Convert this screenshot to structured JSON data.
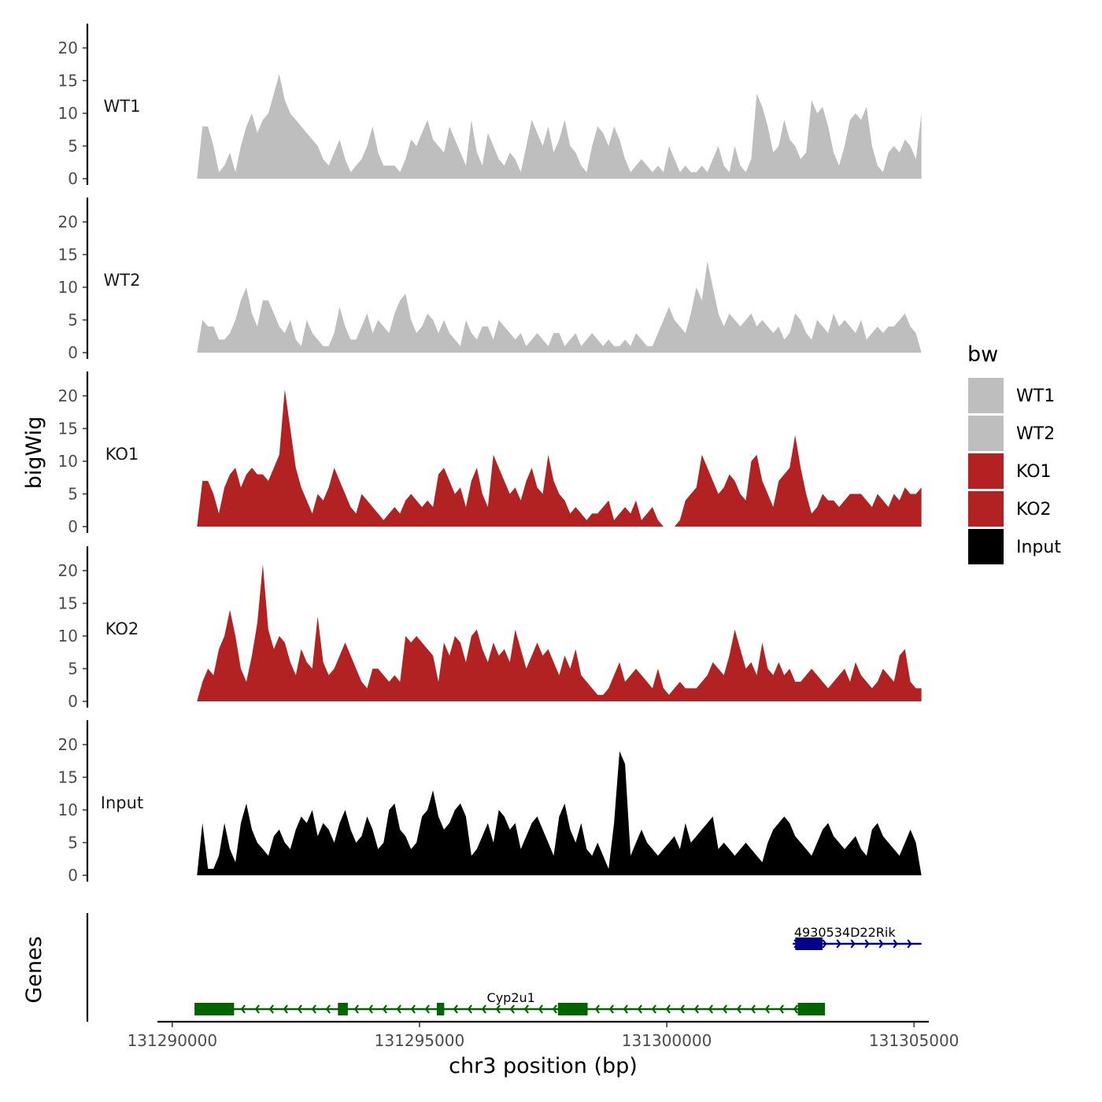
{
  "chart_data": {
    "type": "area",
    "title": "",
    "xlabel": "chr3 position (bp)",
    "ylabel": "bigWig",
    "genes_label": "Genes",
    "xlim": [
      131289700,
      131305300
    ],
    "x_ticks": [
      131290000,
      131295000,
      131300000,
      131305000
    ],
    "x_tick_labels": [
      "131290000",
      "131295000",
      "131300000",
      "131305000"
    ],
    "ylim": [
      0,
      23
    ],
    "y_ticks": [
      0,
      5,
      10,
      15,
      20
    ],
    "y_tick_labels": [
      "0",
      "5",
      "10",
      "15",
      "20"
    ],
    "data_x_start": 131290500,
    "data_x_end": 131305150,
    "legend": {
      "title": "bw",
      "entries": [
        {
          "label": "WT1",
          "color": "#bebebe"
        },
        {
          "label": "WT2",
          "color": "#bebebe"
        },
        {
          "label": "KO1",
          "color": "#b22222"
        },
        {
          "label": "KO2",
          "color": "#b22222"
        },
        {
          "label": "Input",
          "color": "#000000"
        }
      ]
    },
    "series": [
      {
        "name": "WT1",
        "color": "#bebebe",
        "values": [
          0,
          8,
          8,
          5,
          1,
          2,
          4,
          1,
          5,
          8,
          10,
          7,
          9,
          10,
          13,
          16,
          12,
          10,
          9,
          8,
          7,
          6,
          5,
          3,
          2,
          4,
          6,
          3,
          1,
          2,
          3,
          5,
          8,
          4,
          2,
          2,
          2,
          1,
          3,
          6,
          5,
          7,
          9,
          6,
          5,
          4,
          8,
          6,
          4,
          2,
          9,
          4,
          2,
          7,
          5,
          3,
          2,
          4,
          3,
          1,
          5,
          9,
          7,
          5,
          8,
          4,
          6,
          9,
          5,
          4,
          2,
          1,
          5,
          8,
          7,
          5,
          8,
          6,
          3,
          1,
          2,
          3,
          2,
          1,
          2,
          1,
          5,
          3,
          1,
          2,
          1,
          1,
          2,
          1,
          3,
          5,
          2,
          1,
          5,
          2,
          1,
          3,
          13,
          11,
          8,
          4,
          5,
          9,
          6,
          5,
          3,
          4,
          12,
          10,
          11,
          8,
          4,
          2,
          5,
          9,
          10,
          9,
          11,
          5,
          2,
          1,
          4,
          5,
          4,
          6,
          5,
          3,
          10
        ]
      },
      {
        "name": "WT2",
        "color": "#bebebe",
        "values": [
          0,
          5,
          4,
          4,
          2,
          2,
          3,
          5,
          8,
          10,
          6,
          4,
          8,
          8,
          6,
          4,
          3,
          5,
          2,
          1,
          5,
          3,
          2,
          1,
          1,
          3,
          7,
          4,
          2,
          2,
          4,
          6,
          3,
          5,
          4,
          3,
          6,
          8,
          9,
          5,
          3,
          4,
          6,
          5,
          3,
          5,
          3,
          2,
          1,
          5,
          3,
          2,
          4,
          4,
          2,
          5,
          4,
          3,
          2,
          3,
          1,
          2,
          3,
          2,
          1,
          3,
          3,
          1,
          2,
          3,
          1,
          2,
          3,
          2,
          1,
          2,
          1,
          1,
          2,
          1,
          3,
          2,
          1,
          1,
          3,
          5,
          7,
          5,
          4,
          3,
          6,
          10,
          8,
          14,
          10,
          6,
          4,
          6,
          5,
          4,
          5,
          6,
          4,
          5,
          4,
          3,
          4,
          2,
          3,
          6,
          5,
          3,
          2,
          5,
          4,
          3,
          6,
          4,
          5,
          4,
          3,
          5,
          2,
          3,
          4,
          3,
          4,
          4,
          5,
          6,
          4,
          3,
          0
        ]
      },
      {
        "name": "KO1",
        "color": "#b22222",
        "values": [
          0,
          7,
          7,
          5,
          2,
          6,
          8,
          9,
          6,
          8,
          9,
          8,
          8,
          7,
          9,
          11,
          21,
          15,
          9,
          6,
          4,
          2,
          5,
          4,
          6,
          9,
          7,
          5,
          3,
          2,
          5,
          4,
          3,
          2,
          1,
          2,
          3,
          2,
          4,
          5,
          4,
          3,
          4,
          3,
          8,
          9,
          7,
          5,
          6,
          3,
          7,
          9,
          5,
          3,
          11,
          9,
          7,
          5,
          6,
          4,
          7,
          9,
          6,
          5,
          11,
          7,
          5,
          4,
          2,
          3,
          2,
          1,
          2,
          2,
          3,
          4,
          1,
          2,
          3,
          2,
          4,
          1,
          2,
          3,
          1,
          0,
          0,
          0,
          1,
          4,
          5,
          6,
          11,
          9,
          7,
          5,
          6,
          8,
          7,
          5,
          4,
          10,
          11,
          7,
          5,
          3,
          7,
          8,
          9,
          14,
          9,
          5,
          2,
          3,
          5,
          4,
          4,
          3,
          4,
          5,
          5,
          5,
          4,
          3,
          5,
          4,
          3,
          5,
          4,
          6,
          5,
          5,
          6
        ]
      },
      {
        "name": "KO2",
        "color": "#b22222",
        "values": [
          0,
          3,
          5,
          4,
          8,
          10,
          14,
          10,
          5,
          3,
          7,
          12,
          21,
          11,
          8,
          10,
          9,
          6,
          4,
          8,
          6,
          5,
          13,
          6,
          4,
          5,
          7,
          9,
          7,
          5,
          3,
          2,
          5,
          5,
          4,
          3,
          4,
          3,
          10,
          9,
          10,
          9,
          8,
          7,
          3,
          9,
          7,
          10,
          9,
          6,
          10,
          11,
          8,
          6,
          9,
          7,
          8,
          6,
          11,
          8,
          5,
          7,
          9,
          7,
          8,
          6,
          4,
          7,
          5,
          8,
          4,
          3,
          2,
          1,
          1,
          2,
          4,
          6,
          3,
          4,
          5,
          4,
          3,
          2,
          5,
          2,
          1,
          2,
          3,
          2,
          2,
          2,
          3,
          4,
          6,
          5,
          4,
          7,
          11,
          8,
          5,
          6,
          4,
          9,
          5,
          4,
          6,
          4,
          5,
          3,
          3,
          4,
          5,
          4,
          3,
          2,
          3,
          4,
          5,
          3,
          6,
          4,
          3,
          2,
          3,
          5,
          4,
          3,
          7,
          8,
          3,
          2,
          2
        ]
      },
      {
        "name": "Input",
        "color": "#000000",
        "values": [
          0,
          8,
          1,
          1,
          3,
          8,
          4,
          2,
          8,
          11,
          7,
          5,
          4,
          3,
          6,
          7,
          5,
          4,
          7,
          9,
          8,
          10,
          6,
          8,
          7,
          5,
          8,
          10,
          7,
          5,
          6,
          9,
          7,
          4,
          5,
          10,
          11,
          7,
          6,
          4,
          5,
          9,
          10,
          13,
          9,
          7,
          8,
          10,
          11,
          9,
          3,
          4,
          6,
          8,
          5,
          10,
          9,
          7,
          8,
          4,
          6,
          8,
          9,
          7,
          5,
          3,
          9,
          11,
          7,
          5,
          8,
          4,
          3,
          5,
          3,
          1,
          8,
          19,
          17,
          3,
          5,
          7,
          5,
          4,
          3,
          4,
          5,
          6,
          4,
          8,
          5,
          6,
          7,
          8,
          9,
          4,
          5,
          4,
          3,
          4,
          5,
          4,
          3,
          2,
          5,
          7,
          8,
          9,
          8,
          6,
          5,
          4,
          3,
          5,
          7,
          8,
          6,
          5,
          4,
          5,
          6,
          4,
          3,
          7,
          8,
          6,
          5,
          4,
          3,
          5,
          7,
          5,
          0
        ]
      }
    ],
    "gene_tracks": [
      {
        "name": "4930534D22Rik",
        "color": "#00008b",
        "strand": "+",
        "start": 131302550,
        "end": 131305150,
        "exons": [
          [
            131302600,
            131303150
          ]
        ],
        "label_x": 131303600
      },
      {
        "name": "Cyp2u1",
        "color": "#006400",
        "strand": "-",
        "start": 131290450,
        "end": 131303200,
        "exons": [
          [
            131290450,
            131291250
          ],
          [
            131293350,
            131293550
          ],
          [
            131295350,
            131295500
          ],
          [
            131297800,
            131298400
          ],
          [
            131302650,
            131303200
          ]
        ],
        "label_x": 131296850
      }
    ]
  }
}
